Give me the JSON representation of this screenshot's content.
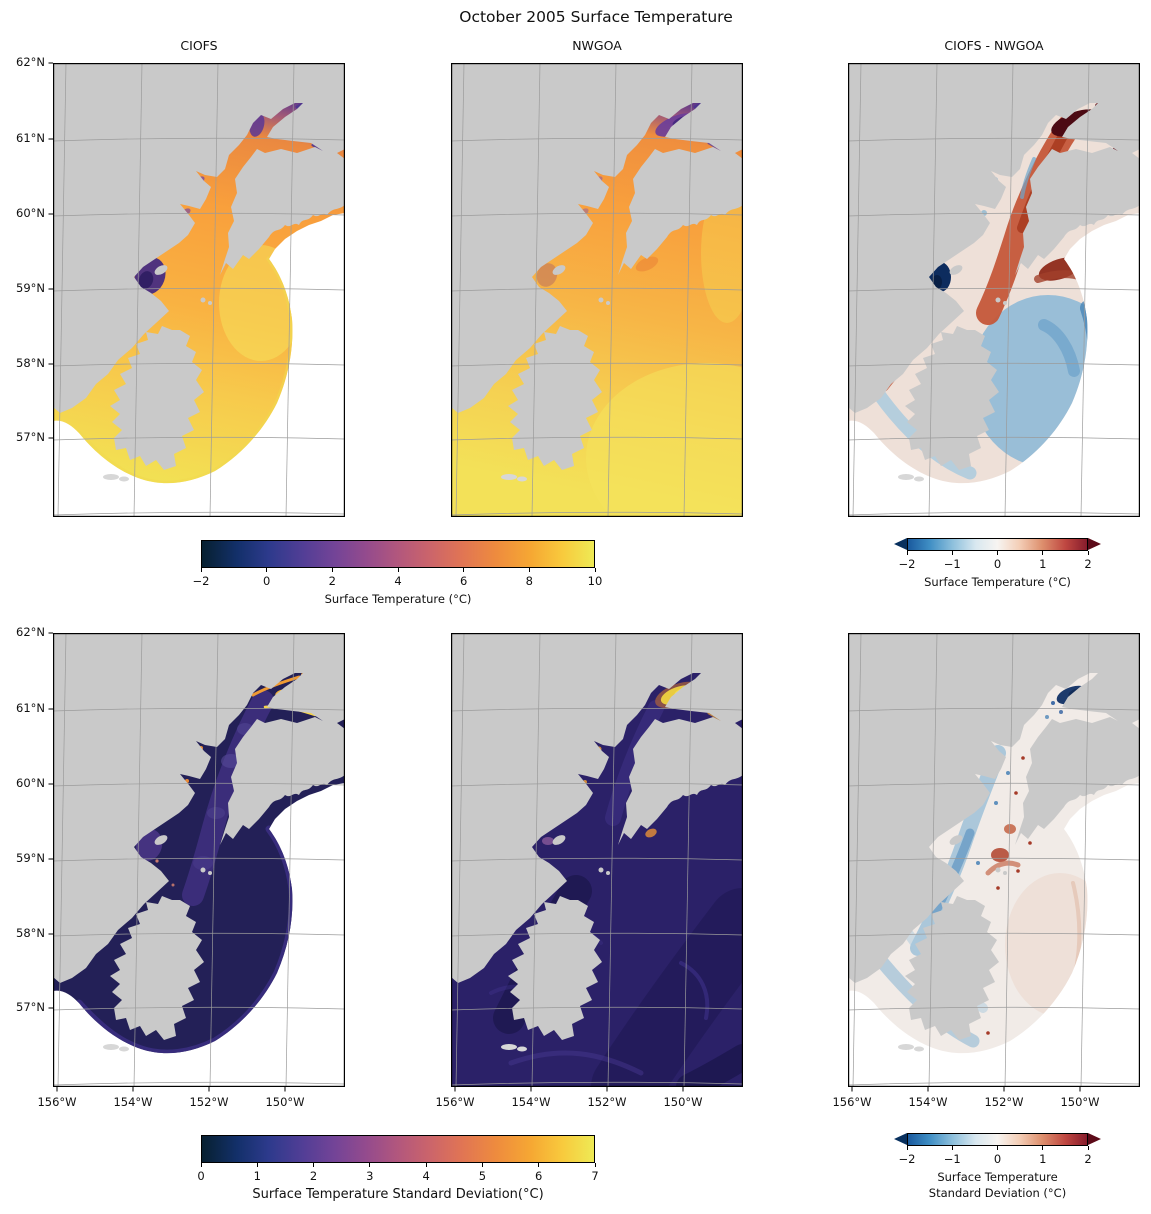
{
  "figure": {
    "suptitle": "October 2005 Surface Temperature",
    "background": "#ffffff"
  },
  "panels": [
    {
      "id": "temp-ciofs",
      "title": "CIOFS",
      "row": 0,
      "col": 0,
      "domain": "ciofs",
      "fill": "grad:temp_model"
    },
    {
      "id": "temp-nwgoa",
      "title": "NWGOA",
      "row": 0,
      "col": 1,
      "domain": "full",
      "fill": "grad:temp_model2"
    },
    {
      "id": "temp-diff",
      "title": "CIOFS - NWGOA",
      "row": 0,
      "col": 2,
      "domain": "ciofs",
      "fill": "#eee0d8"
    },
    {
      "id": "std-ciofs",
      "title": "",
      "row": 1,
      "col": 0,
      "domain": "ciofs",
      "fill": "#232057"
    },
    {
      "id": "std-nwgoa",
      "title": "",
      "row": 1,
      "col": 1,
      "domain": "full",
      "fill": "#2b2168"
    },
    {
      "id": "std-diff",
      "title": "",
      "row": 1,
      "col": 2,
      "domain": "ciofs",
      "fill": "#f1ebe7"
    }
  ],
  "axes": {
    "lat_ticks": [
      "62°N",
      "61°N",
      "60°N",
      "59°N",
      "58°N",
      "57°N"
    ],
    "lon_ticks": [
      "156°W",
      "154°W",
      "152°W",
      "150°W"
    ]
  },
  "colorbars": [
    {
      "id": "cb-temp",
      "type": "thermal",
      "ticks": [
        "−2",
        "0",
        "2",
        "4",
        "6",
        "8",
        "10"
      ],
      "label": "Surface Temperature (°C)",
      "range": [
        -2,
        10
      ]
    },
    {
      "id": "cb-temp-diff",
      "type": "diverging",
      "ticks": [
        "−2",
        "−1",
        "0",
        "1",
        "2"
      ],
      "label": "Surface Temperature (°C)",
      "range": [
        -2,
        2
      ],
      "extend": "both"
    },
    {
      "id": "cb-std",
      "type": "thermal",
      "ticks": [
        "0",
        "1",
        "2",
        "3",
        "4",
        "5",
        "6",
        "7"
      ],
      "label": "Surface Temperature Standard Deviation(°C)",
      "range": [
        0,
        7
      ]
    },
    {
      "id": "cb-std-diff",
      "type": "diverging",
      "ticks": [
        "−2",
        "−1",
        "0",
        "1",
        "2"
      ],
      "label_lines": [
        "Surface Temperature",
        "Standard Deviation (°C)"
      ],
      "range": [
        -2,
        2
      ],
      "extend": "both"
    }
  ],
  "colors": {
    "land": "#c9c9c9",
    "land_faint": "#d7d7d7",
    "grid": "#9b9b9b",
    "border": "#000000",
    "thermal_stops": [
      [
        0,
        "#072030"
      ],
      [
        0.09,
        "#13306a"
      ],
      [
        0.17,
        "#2d3a8c"
      ],
      [
        0.26,
        "#533e96"
      ],
      [
        0.34,
        "#744497"
      ],
      [
        0.42,
        "#944b8d"
      ],
      [
        0.5,
        "#b2577d"
      ],
      [
        0.58,
        "#cb646b"
      ],
      [
        0.66,
        "#e07455"
      ],
      [
        0.75,
        "#ee8b3e"
      ],
      [
        0.84,
        "#f6a833"
      ],
      [
        0.92,
        "#f8ca3d"
      ],
      [
        1,
        "#eeea55"
      ]
    ],
    "diverging_stops": [
      [
        0,
        "#1a5a9e"
      ],
      [
        0.12,
        "#3f8ec4"
      ],
      [
        0.25,
        "#8ec0dc"
      ],
      [
        0.38,
        "#d9e8f0"
      ],
      [
        0.5,
        "#f7f4f1"
      ],
      [
        0.62,
        "#f4cfb8"
      ],
      [
        0.75,
        "#dd8f6d"
      ],
      [
        0.88,
        "#bf4741"
      ],
      [
        1,
        "#871c2c"
      ]
    ],
    "diverging_arrow_left": "#08305e",
    "diverging_arrow_right": "#5c0a18"
  },
  "gradients": {
    "temp_model": [
      [
        0,
        "#53338f"
      ],
      [
        0.05,
        "#a05878"
      ],
      [
        0.11,
        "#ea8840"
      ],
      [
        0.3,
        "#f9a03c"
      ],
      [
        0.55,
        "#f9b242"
      ],
      [
        0.75,
        "#f7ca4c"
      ],
      [
        1,
        "#f2e254"
      ]
    ],
    "temp_model2": [
      [
        0,
        "#4a2f8c"
      ],
      [
        0.05,
        "#95527e"
      ],
      [
        0.11,
        "#ef8e3e"
      ],
      [
        0.3,
        "#f8a03d"
      ],
      [
        0.55,
        "#f7b546"
      ],
      [
        0.8,
        "#f5d152"
      ],
      [
        1,
        "#f3e158"
      ]
    ]
  },
  "chart_data": {
    "type": "heatmap",
    "title": "October 2005 Surface Temperature",
    "layout": "2 rows x 3 columns of geographic map subplots with 4 horizontal colorbars",
    "x_ticks": [
      "156°W",
      "154°W",
      "152°W",
      "150°W"
    ],
    "y_ticks": [
      "62°N",
      "61°N",
      "60°N",
      "59°N",
      "58°N",
      "57°N"
    ],
    "subplots": [
      {
        "title": "CIOFS",
        "quantity": "Surface Temperature (°C)",
        "colormap": "thermal",
        "range": [
          -2,
          10
        ],
        "notes": "mostly 6-9°C orange/yellow water, purple cold patches at inlet head and west shore; white outside fan-shaped model domain"
      },
      {
        "title": "NWGOA",
        "quantity": "Surface Temperature (°C)",
        "colormap": "thermal",
        "range": [
          -2,
          10
        ],
        "notes": "full-domain orange/yellow gulf, purple cold water at inlet head"
      },
      {
        "title": "CIOFS - NWGOA",
        "quantity": "Surface Temperature (°C)",
        "colormap": "diverging red-blue",
        "range": [
          -2,
          2
        ],
        "notes": "CIOFS warmer (red) inside Cook Inlet, dark red at head, dark blue patch on west shore, cooler (blue) over shelf southeast of Kodiak"
      },
      {
        "title": "CIOFS",
        "quantity": "Surface Temperature Standard Deviation(°C)",
        "colormap": "thermal",
        "range": [
          0,
          7
        ],
        "notes": "low std (dark navy) overall, purple mottling mid-inlet, high std (orange/yellow) streaks at inlet head"
      },
      {
        "title": "NWGOA",
        "quantity": "Surface Temperature Standard Deviation(°C)",
        "colormap": "thermal",
        "range": [
          0,
          7
        ],
        "notes": "low std (indigo) with swirls across gulf, bright yellow maximum at inlet head"
      },
      {
        "title": "CIOFS - NWGOA",
        "quantity": "Surface Temperature Standard Deviation (°C)",
        "colormap": "diverging red-blue",
        "range": [
          -2,
          2
        ],
        "notes": "near-zero (white) overall, negative (blue) along west side, speckled positive (red) cells, dark navy patch at inlet head"
      }
    ]
  }
}
